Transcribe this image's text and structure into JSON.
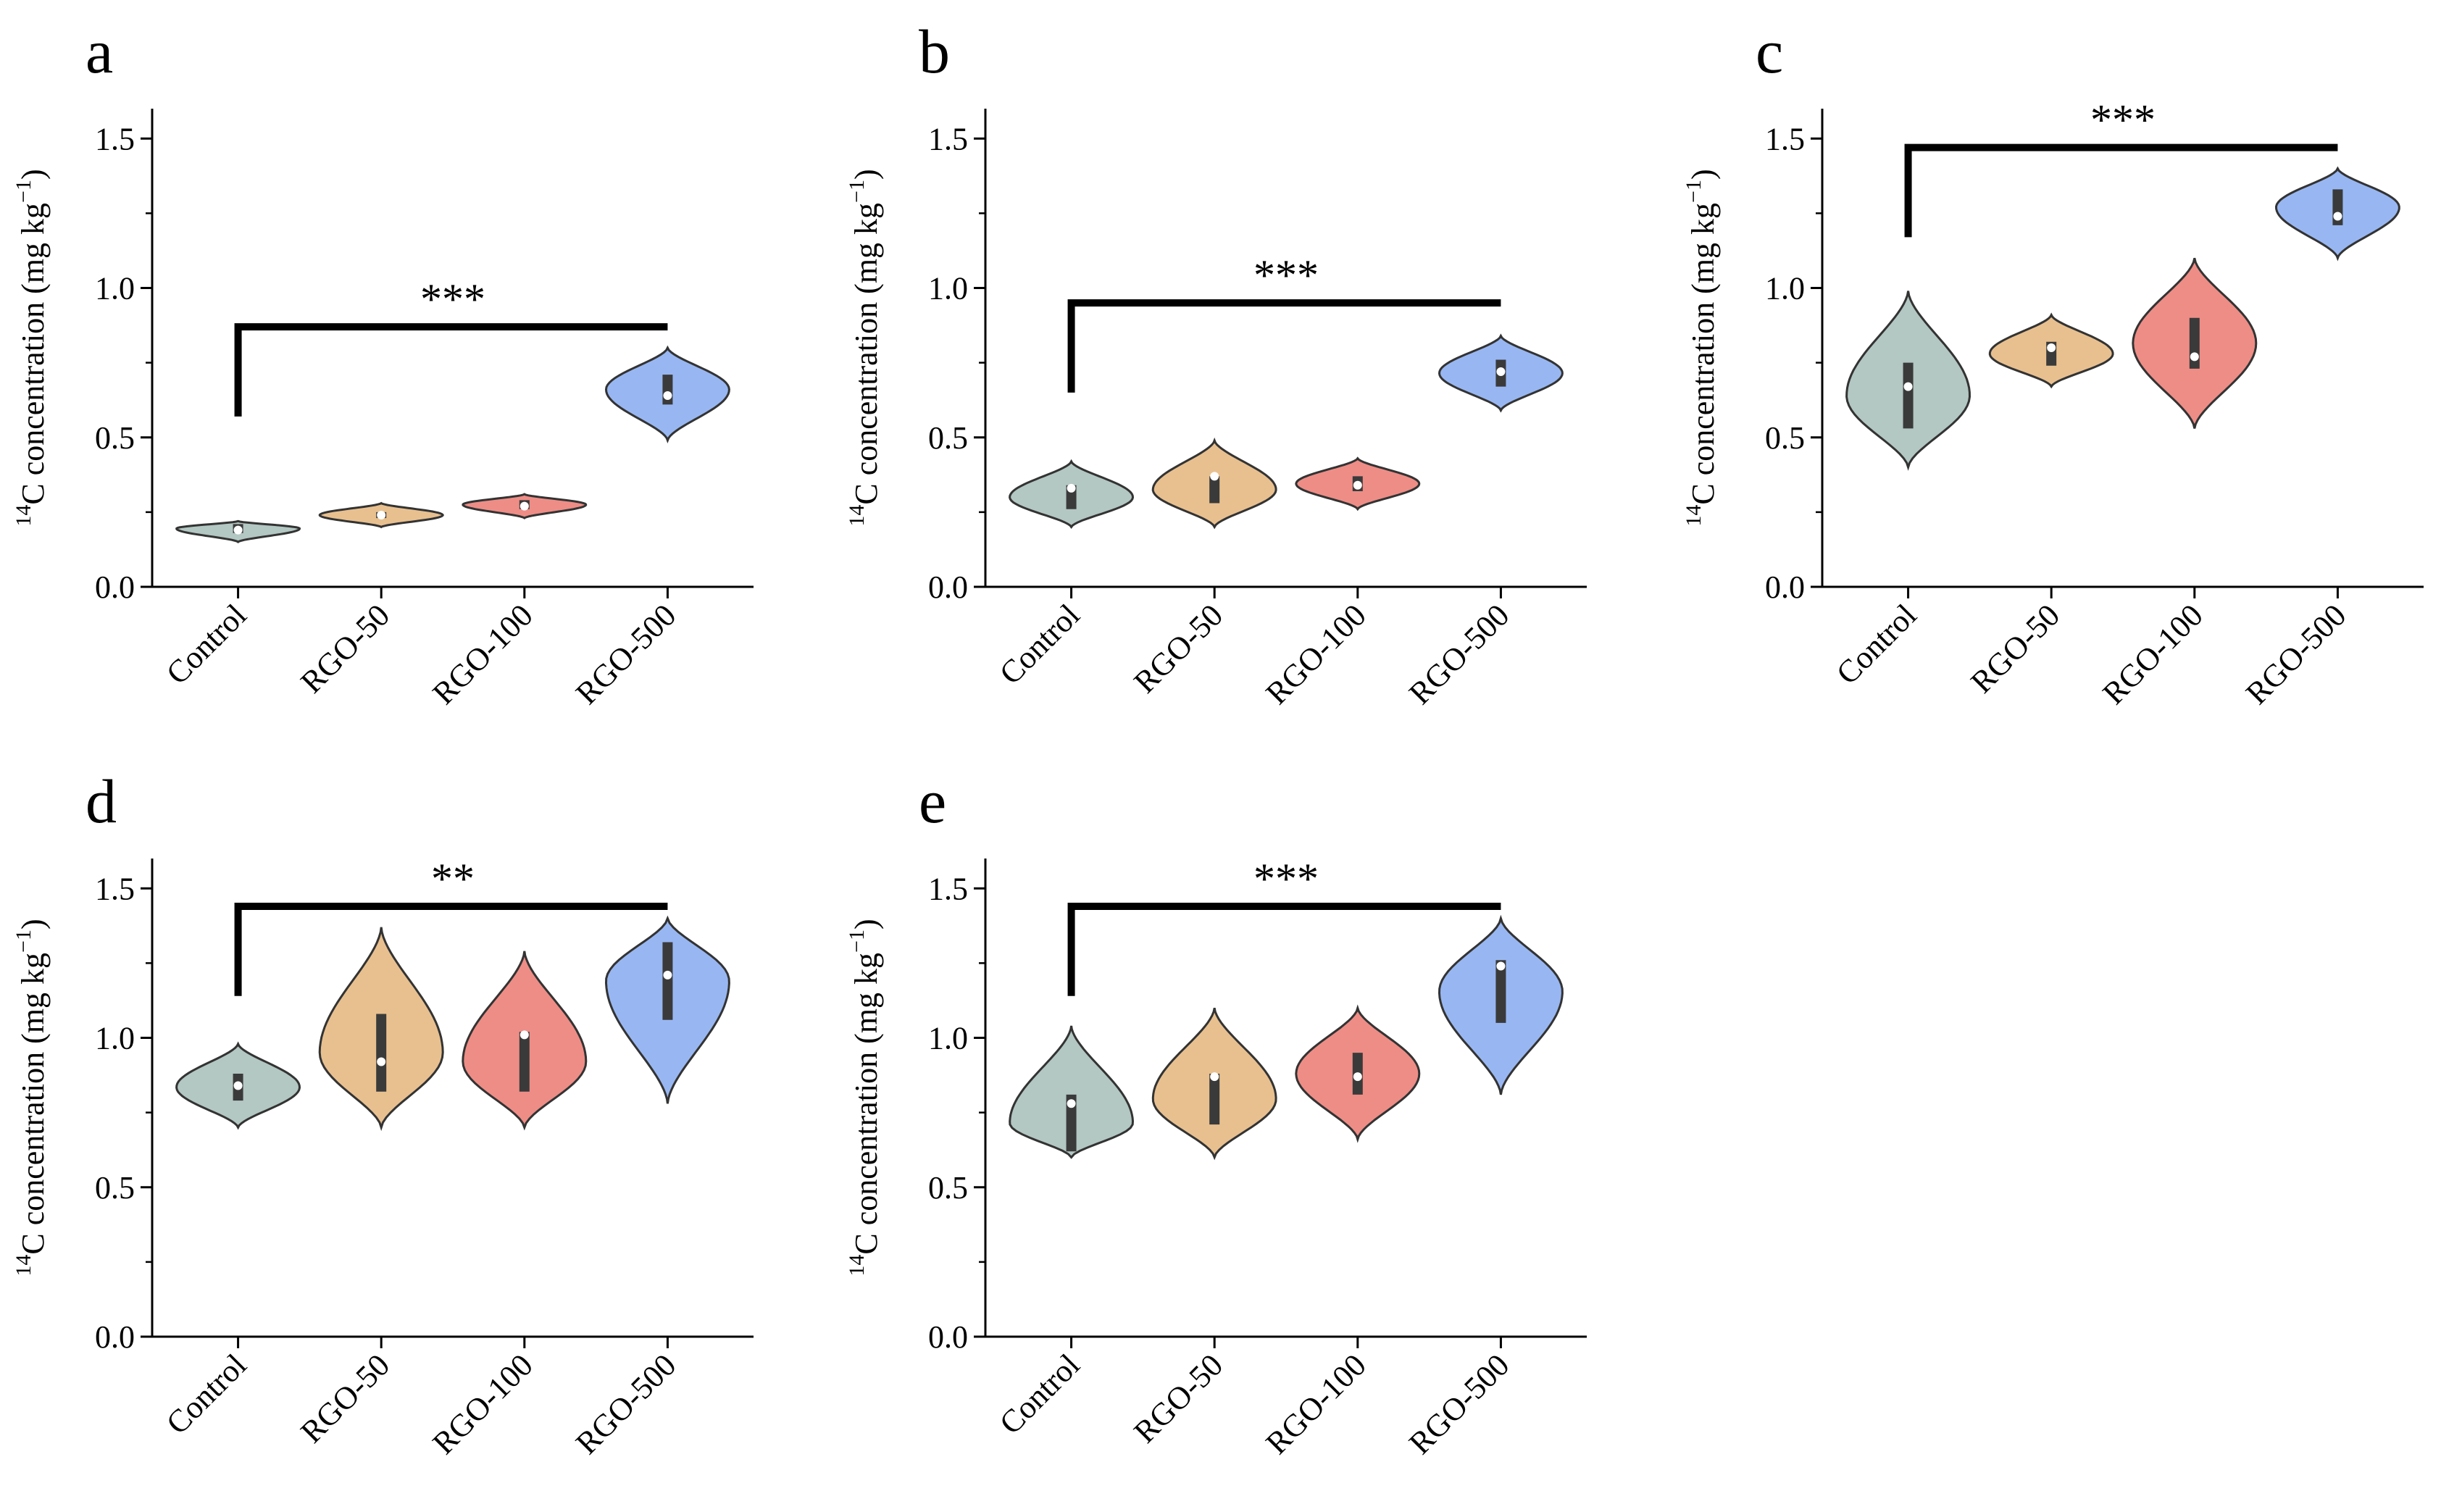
{
  "figure": {
    "ylabel": "C concentration (mg kg",
    "ylabel_prefix": "14",
    "ylabel_unit_exp": "−1",
    "ylabel_close": ")"
  },
  "chart_data": [
    {
      "panel": "a",
      "type": "violin",
      "categories": [
        "Control",
        "RGO-50",
        "RGO-100",
        "RGO-500"
      ],
      "ylim": [
        0,
        1.6
      ],
      "yticks": [
        "0.0",
        "0.5",
        "1.0",
        "1.5"
      ],
      "colors": [
        "#b3c7c3",
        "#e8c08f",
        "#ee8d86",
        "#98b7f2"
      ],
      "series": [
        {
          "name": "Control",
          "min": 0.15,
          "max": 0.22,
          "q1": 0.18,
          "q3": 0.21,
          "median": 0.19
        },
        {
          "name": "RGO-50",
          "min": 0.2,
          "max": 0.28,
          "q1": 0.23,
          "q3": 0.25,
          "median": 0.24
        },
        {
          "name": "RGO-100",
          "min": 0.23,
          "max": 0.31,
          "q1": 0.26,
          "q3": 0.29,
          "median": 0.27
        },
        {
          "name": "RGO-500",
          "min": 0.49,
          "max": 0.8,
          "q1": 0.61,
          "q3": 0.71,
          "median": 0.64
        }
      ],
      "significance": {
        "from": "Control",
        "to": "RGO-500",
        "label": "***",
        "bar_y": 0.87,
        "left_low": 0.57,
        "right_low": 0.87
      }
    },
    {
      "panel": "b",
      "type": "violin",
      "categories": [
        "Control",
        "RGO-50",
        "RGO-100",
        "RGO-500"
      ],
      "ylim": [
        0,
        1.6
      ],
      "yticks": [
        "0.0",
        "0.5",
        "1.0",
        "1.5"
      ],
      "colors": [
        "#b3c7c3",
        "#e8c08f",
        "#ee8d86",
        "#98b7f2"
      ],
      "series": [
        {
          "name": "Control",
          "min": 0.2,
          "max": 0.42,
          "q1": 0.26,
          "q3": 0.34,
          "median": 0.33
        },
        {
          "name": "RGO-50",
          "min": 0.2,
          "max": 0.49,
          "q1": 0.28,
          "q3": 0.37,
          "median": 0.37
        },
        {
          "name": "RGO-100",
          "min": 0.26,
          "max": 0.43,
          "q1": 0.32,
          "q3": 0.37,
          "median": 0.34
        },
        {
          "name": "RGO-500",
          "min": 0.59,
          "max": 0.84,
          "q1": 0.67,
          "q3": 0.76,
          "median": 0.72
        }
      ],
      "significance": {
        "from": "Control",
        "to": "RGO-500",
        "label": "***",
        "bar_y": 0.95,
        "left_low": 0.65,
        "right_low": 0.95
      }
    },
    {
      "panel": "c",
      "type": "violin",
      "categories": [
        "Control",
        "RGO-50",
        "RGO-100",
        "RGO-500"
      ],
      "ylim": [
        0,
        1.6
      ],
      "yticks": [
        "0.0",
        "0.5",
        "1.0",
        "1.5"
      ],
      "colors": [
        "#b3c7c3",
        "#e8c08f",
        "#ee8d86",
        "#98b7f2"
      ],
      "series": [
        {
          "name": "Control",
          "min": 0.4,
          "max": 0.99,
          "q1": 0.53,
          "q3": 0.75,
          "median": 0.67
        },
        {
          "name": "RGO-50",
          "min": 0.67,
          "max": 0.91,
          "q1": 0.74,
          "q3": 0.82,
          "median": 0.8
        },
        {
          "name": "RGO-100",
          "min": 0.53,
          "max": 1.1,
          "q1": 0.73,
          "q3": 0.9,
          "median": 0.77
        },
        {
          "name": "RGO-500",
          "min": 1.1,
          "max": 1.4,
          "q1": 1.21,
          "q3": 1.33,
          "median": 1.24
        }
      ],
      "significance": {
        "from": "Control",
        "to": "RGO-500",
        "label": "***",
        "bar_y": 1.47,
        "left_low": 1.17,
        "right_low": 1.47
      }
    },
    {
      "panel": "d",
      "type": "violin",
      "categories": [
        "Control",
        "RGO-50",
        "RGO-100",
        "RGO-500"
      ],
      "ylim": [
        0,
        1.6
      ],
      "yticks": [
        "0.0",
        "0.5",
        "1.0",
        "1.5"
      ],
      "colors": [
        "#b3c7c3",
        "#e8c08f",
        "#ee8d86",
        "#98b7f2"
      ],
      "series": [
        {
          "name": "Control",
          "min": 0.7,
          "max": 0.98,
          "q1": 0.79,
          "q3": 0.88,
          "median": 0.84
        },
        {
          "name": "RGO-50",
          "min": 0.7,
          "max": 1.37,
          "q1": 0.82,
          "q3": 1.08,
          "median": 0.92
        },
        {
          "name": "RGO-100",
          "min": 0.7,
          "max": 1.29,
          "q1": 0.82,
          "q3": 1.02,
          "median": 1.01
        },
        {
          "name": "RGO-500",
          "min": 0.78,
          "max": 1.4,
          "q1": 1.06,
          "q3": 1.32,
          "median": 1.21
        }
      ],
      "significance": {
        "from": "Control",
        "to": "RGO-500",
        "label": "**",
        "bar_y": 1.44,
        "left_low": 1.14,
        "right_low": 1.44
      }
    },
    {
      "panel": "e",
      "type": "violin",
      "categories": [
        "Control",
        "RGO-50",
        "RGO-100",
        "RGO-500"
      ],
      "ylim": [
        0,
        1.6
      ],
      "yticks": [
        "0.0",
        "0.5",
        "1.0",
        "1.5"
      ],
      "colors": [
        "#b3c7c3",
        "#e8c08f",
        "#ee8d86",
        "#98b7f2"
      ],
      "series": [
        {
          "name": "Control",
          "min": 0.6,
          "max": 1.04,
          "q1": 0.62,
          "q3": 0.81,
          "median": 0.78
        },
        {
          "name": "RGO-50",
          "min": 0.6,
          "max": 1.1,
          "q1": 0.71,
          "q3": 0.88,
          "median": 0.87
        },
        {
          "name": "RGO-100",
          "min": 0.66,
          "max": 1.1,
          "q1": 0.81,
          "q3": 0.95,
          "median": 0.87
        },
        {
          "name": "RGO-500",
          "min": 0.81,
          "max": 1.4,
          "q1": 1.05,
          "q3": 1.26,
          "median": 1.24
        }
      ],
      "significance": {
        "from": "Control",
        "to": "RGO-500",
        "label": "***",
        "bar_y": 1.44,
        "left_low": 1.14,
        "right_low": 1.44
      }
    }
  ]
}
